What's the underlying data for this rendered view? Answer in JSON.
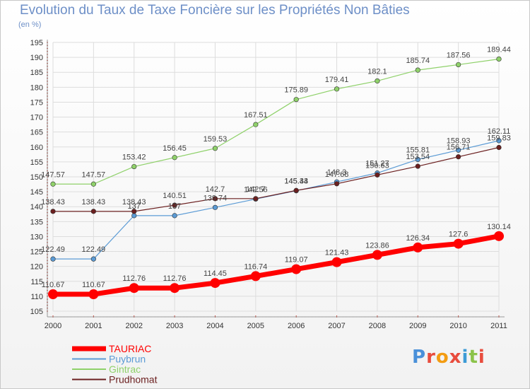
{
  "title": "Evolution du Taux de Taxe Foncière sur les Propriétés Non Bâties",
  "subtitle": "(en %)",
  "logo": "Proxiti",
  "chart_data": {
    "type": "line",
    "x": [
      "2000",
      "2001",
      "2002",
      "2003",
      "2004",
      "2005",
      "2006",
      "2007",
      "2008",
      "2009",
      "2010",
      "2011"
    ],
    "ylim": [
      105,
      195
    ],
    "yticks": [
      105,
      110,
      115,
      120,
      125,
      130,
      135,
      140,
      145,
      150,
      155,
      160,
      165,
      170,
      175,
      180,
      185,
      190,
      195
    ],
    "grid": true,
    "legend_position": "bottom-left",
    "series": [
      {
        "name": "TAURIAC",
        "color": "#ff0000",
        "width": 7,
        "values": [
          110.67,
          110.67,
          112.76,
          112.76,
          114.45,
          116.74,
          119.07,
          121.43,
          123.86,
          126.34,
          127.6,
          130.14
        ],
        "labels": [
          "110.67",
          "110.67",
          "112.76",
          "112.76",
          "114.45",
          "116.74",
          "119.07",
          "121.43",
          "123.86",
          "126.34",
          "127.6",
          "130.14"
        ]
      },
      {
        "name": "Puybrun",
        "color": "#5b9bd5",
        "width": 1.2,
        "values": [
          122.49,
          122.49,
          137,
          137,
          139.74,
          142.56,
          145.33,
          148.3,
          151.27,
          155.81,
          158.93,
          162.11
        ],
        "labels": [
          "122.49",
          "122.49",
          "137",
          "137",
          "139.74",
          "142.56",
          "145.33",
          "148.3",
          "151.27",
          "155.81",
          "158.93",
          "162.11"
        ]
      },
      {
        "name": "Gintrac",
        "color": "#8fd16a",
        "width": 1.2,
        "values": [
          147.57,
          147.57,
          153.42,
          156.45,
          159.53,
          167.51,
          175.89,
          179.41,
          182.1,
          185.74,
          187.56,
          189.44
        ],
        "labels": [
          "147.57",
          "147.57",
          "153.42",
          "156.45",
          "159.53",
          "167.51",
          "175.89",
          "179.41",
          "182.1",
          "185.74",
          "187.56",
          "189.44"
        ]
      },
      {
        "name": "Prudhomat",
        "color": "#6b1f1f",
        "width": 1.2,
        "values": [
          138.43,
          138.43,
          138.43,
          140.51,
          142.7,
          142.7,
          145.44,
          147.68,
          150.63,
          153.54,
          156.71,
          159.83
        ],
        "labels": [
          "138.43",
          "138.43",
          "138.43",
          "140.51",
          "142.7",
          "142.7",
          "145.44",
          "147.68",
          "150.63",
          "153.54",
          "156.71",
          "159.83"
        ]
      }
    ]
  }
}
